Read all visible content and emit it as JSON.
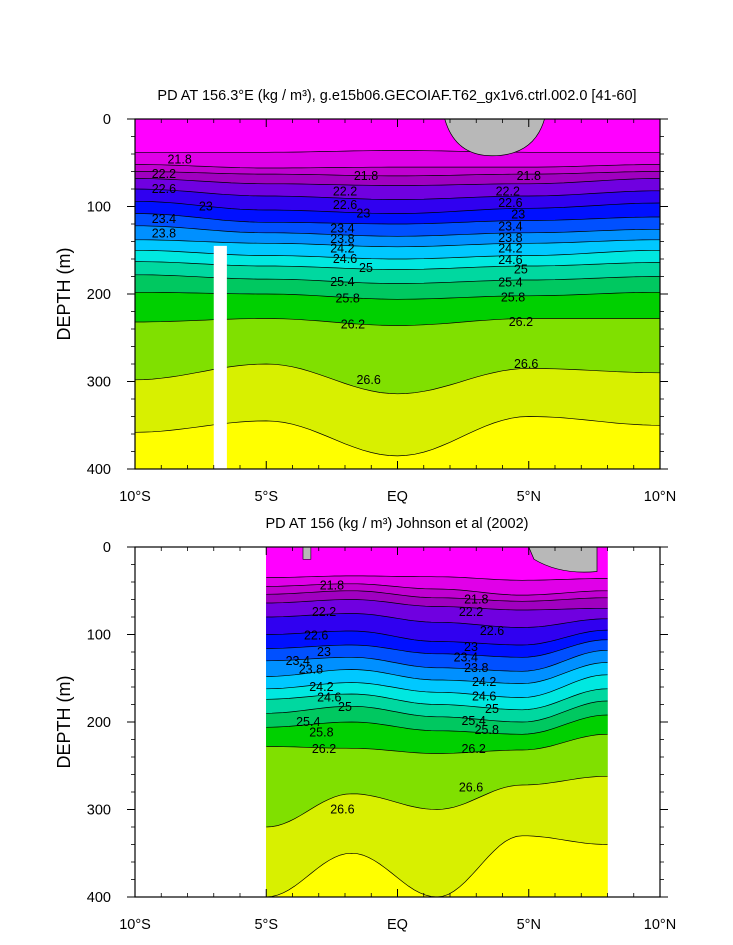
{
  "chart_data": [
    {
      "type": "heatmap",
      "title": "PD AT 156.3°E (kg / m³), g.e15b06.GECOIAF.T62_gx1v6.ctrl.002.0 [41-60]",
      "ylabel": "DEPTH (m)",
      "xlabel": "",
      "x_range": [
        -10,
        10
      ],
      "y_range": [
        0,
        400
      ],
      "y_reversed": true,
      "x_ticks": [
        -10,
        -5,
        0,
        5,
        10
      ],
      "x_tick_labels": [
        "10°S",
        "5°S",
        "EQ",
        "5°N",
        "10°N"
      ],
      "y_ticks": [
        0,
        100,
        200,
        300,
        400
      ],
      "y_tick_labels": [
        "0",
        "100",
        "200",
        "300",
        "400"
      ],
      "data_x_range": [
        -10,
        10
      ],
      "missing_band": [
        -7,
        -6.5,
        145,
        400
      ],
      "contour_depths": [
        {
          "level": 21.6,
          "depths": [
            38,
            38,
            36,
            38,
            38
          ]
        },
        {
          "level": 21.8,
          "depths": [
            52,
            56,
            55,
            55,
            52
          ]
        },
        {
          "level": 22.0,
          "depths": [
            60,
            63,
            65,
            63,
            60
          ]
        },
        {
          "level": 22.2,
          "depths": [
            68,
            74,
            76,
            74,
            68
          ]
        },
        {
          "level": 22.6,
          "depths": [
            80,
            88,
            92,
            88,
            82
          ]
        },
        {
          "level": 23.0,
          "depths": [
            94,
            104,
            108,
            102,
            96
          ]
        },
        {
          "level": 23.4,
          "depths": [
            108,
            118,
            120,
            116,
            112
          ]
        },
        {
          "level": 23.8,
          "depths": [
            122,
            130,
            134,
            130,
            126
          ]
        },
        {
          "level": 24.2,
          "depths": [
            138,
            142,
            146,
            142,
            138
          ]
        },
        {
          "level": 24.6,
          "depths": [
            150,
            156,
            160,
            156,
            150
          ]
        },
        {
          "level": 25.0,
          "depths": [
            163,
            168,
            172,
            168,
            164
          ]
        },
        {
          "level": 25.4,
          "depths": [
            178,
            183,
            188,
            184,
            180
          ]
        },
        {
          "level": 25.8,
          "depths": [
            198,
            200,
            206,
            202,
            198
          ]
        },
        {
          "level": 26.2,
          "depths": [
            232,
            228,
            236,
            228,
            228
          ]
        },
        {
          "level": 26.6,
          "depths": [
            298,
            280,
            314,
            285,
            290
          ]
        },
        {
          "level": 27.0,
          "depths": [
            358,
            345,
            385,
            340,
            350
          ]
        }
      ],
      "labels": [
        {
          "text": "21.8",
          "x": -8.3,
          "y": 46
        },
        {
          "text": "21.8",
          "x": -1.2,
          "y": 65
        },
        {
          "text": "21.8",
          "x": 5.0,
          "y": 65
        },
        {
          "text": "22.2",
          "x": -8.9,
          "y": 63
        },
        {
          "text": "22.6",
          "x": -8.9,
          "y": 80
        },
        {
          "text": "23",
          "x": -7.3,
          "y": 100
        },
        {
          "text": "23.4",
          "x": -8.9,
          "y": 114
        },
        {
          "text": "23.8",
          "x": -8.9,
          "y": 131
        },
        {
          "text": "22.2",
          "x": -2.0,
          "y": 83
        },
        {
          "text": "22.6",
          "x": -2.0,
          "y": 98
        },
        {
          "text": "23",
          "x": -1.3,
          "y": 108
        },
        {
          "text": "23.4",
          "x": -2.1,
          "y": 125
        },
        {
          "text": "23.8",
          "x": -2.1,
          "y": 137
        },
        {
          "text": "24.2",
          "x": -2.1,
          "y": 148
        },
        {
          "text": "24.6",
          "x": -2.0,
          "y": 160
        },
        {
          "text": "25",
          "x": -1.2,
          "y": 170
        },
        {
          "text": "25.4",
          "x": -2.1,
          "y": 186
        },
        {
          "text": "25.8",
          "x": -1.9,
          "y": 205
        },
        {
          "text": "26.2",
          "x": -1.7,
          "y": 235
        },
        {
          "text": "26.6",
          "x": -1.1,
          "y": 298
        },
        {
          "text": "22.2",
          "x": 4.2,
          "y": 83
        },
        {
          "text": "22.6",
          "x": 4.3,
          "y": 96
        },
        {
          "text": "23",
          "x": 4.6,
          "y": 109
        },
        {
          "text": "23.4",
          "x": 4.3,
          "y": 123
        },
        {
          "text": "23.8",
          "x": 4.3,
          "y": 136
        },
        {
          "text": "24.2",
          "x": 4.3,
          "y": 148
        },
        {
          "text": "24.6",
          "x": 4.3,
          "y": 161
        },
        {
          "text": "25",
          "x": 4.7,
          "y": 172
        },
        {
          "text": "25.4",
          "x": 4.3,
          "y": 187
        },
        {
          "text": "25.8",
          "x": 4.4,
          "y": 204
        },
        {
          "text": "26.2",
          "x": 4.7,
          "y": 232
        },
        {
          "text": "26.6",
          "x": 4.9,
          "y": 280
        }
      ]
    },
    {
      "type": "heatmap",
      "title": "PD AT 156 (kg / m³) Johnson et al (2002)",
      "ylabel": "DEPTH (m)",
      "xlabel": "",
      "x_range": [
        -10,
        10
      ],
      "y_range": [
        0,
        400
      ],
      "y_reversed": true,
      "x_ticks": [
        -10,
        -5,
        0,
        5,
        10
      ],
      "x_tick_labels": [
        "10°S",
        "5°S",
        "EQ",
        "5°N",
        "10°N"
      ],
      "y_ticks": [
        0,
        100,
        200,
        300,
        400
      ],
      "y_tick_labels": [
        "0",
        "100",
        "200",
        "300",
        "400"
      ],
      "data_x_range": [
        -5,
        8
      ],
      "contour_depths": [
        {
          "level": 21.6,
          "depths": [
            35,
            33,
            34,
            38,
            36
          ]
        },
        {
          "level": 21.8,
          "depths": [
            45,
            42,
            48,
            55,
            50
          ]
        },
        {
          "level": 22.0,
          "depths": [
            54,
            50,
            58,
            62,
            58
          ]
        },
        {
          "level": 22.2,
          "depths": [
            64,
            60,
            68,
            72,
            70
          ]
        },
        {
          "level": 22.6,
          "depths": [
            80,
            76,
            86,
            92,
            82
          ]
        },
        {
          "level": 23.0,
          "depths": [
            100,
            96,
            108,
            112,
            95
          ]
        },
        {
          "level": 23.4,
          "depths": [
            116,
            112,
            122,
            126,
            106
          ]
        },
        {
          "level": 23.8,
          "depths": [
            130,
            126,
            138,
            142,
            118
          ]
        },
        {
          "level": 24.2,
          "depths": [
            148,
            140,
            152,
            156,
            132
          ]
        },
        {
          "level": 24.6,
          "depths": [
            162,
            155,
            166,
            172,
            146
          ]
        },
        {
          "level": 25.0,
          "depths": [
            174,
            168,
            180,
            186,
            162
          ]
        },
        {
          "level": 25.4,
          "depths": [
            190,
            182,
            194,
            200,
            176
          ]
        },
        {
          "level": 25.8,
          "depths": [
            206,
            200,
            210,
            214,
            192
          ]
        },
        {
          "level": 26.2,
          "depths": [
            228,
            230,
            236,
            232,
            214
          ]
        },
        {
          "level": 26.6,
          "depths": [
            320,
            282,
            300,
            272,
            262
          ]
        },
        {
          "level": 27.0,
          "depths": [
            400,
            350,
            400,
            330,
            340
          ]
        }
      ],
      "labels": [
        {
          "text": "21.8",
          "x": -2.5,
          "y": 44
        },
        {
          "text": "21.8",
          "x": 3.0,
          "y": 60
        },
        {
          "text": "22.2",
          "x": -2.8,
          "y": 74
        },
        {
          "text": "22.2",
          "x": 2.8,
          "y": 74
        },
        {
          "text": "22.6",
          "x": -3.1,
          "y": 101
        },
        {
          "text": "22.6",
          "x": 3.6,
          "y": 96
        },
        {
          "text": "23",
          "x": -2.8,
          "y": 120
        },
        {
          "text": "23",
          "x": 2.8,
          "y": 114
        },
        {
          "text": "23.4",
          "x": -3.8,
          "y": 130
        },
        {
          "text": "23.4",
          "x": 2.6,
          "y": 126
        },
        {
          "text": "23.8",
          "x": -3.3,
          "y": 140
        },
        {
          "text": "23.8",
          "x": 3.0,
          "y": 138
        },
        {
          "text": "24.2",
          "x": -2.9,
          "y": 160
        },
        {
          "text": "24.2",
          "x": 3.3,
          "y": 154
        },
        {
          "text": "24.6",
          "x": -2.6,
          "y": 172
        },
        {
          "text": "24.6",
          "x": 3.3,
          "y": 171
        },
        {
          "text": "25",
          "x": -2.0,
          "y": 183
        },
        {
          "text": "25",
          "x": 3.6,
          "y": 185
        },
        {
          "text": "25.4",
          "x": -3.4,
          "y": 200
        },
        {
          "text": "25.4",
          "x": 2.9,
          "y": 199
        },
        {
          "text": "25.8",
          "x": -2.9,
          "y": 212
        },
        {
          "text": "25.8",
          "x": 3.4,
          "y": 209
        },
        {
          "text": "26.2",
          "x": -2.8,
          "y": 231
        },
        {
          "text": "26.2",
          "x": 2.9,
          "y": 231
        },
        {
          "text": "26.6",
          "x": -2.1,
          "y": 300
        },
        {
          "text": "26.6",
          "x": 2.8,
          "y": 275
        }
      ]
    }
  ],
  "colors": {
    "bands": [
      "#ff00ff",
      "#e000e8",
      "#c000d0",
      "#a000c0",
      "#7000e0",
      "#3000f0",
      "#0010ff",
      "#0050ff",
      "#0090ff",
      "#00c8ff",
      "#00e8e0",
      "#00d8a0",
      "#00c860",
      "#00d000",
      "#80e000",
      "#d8f000",
      "#ffff00",
      "#ffd800",
      "#ffb000",
      "#ff9000",
      "#ff7000",
      "#ff4000",
      "#ff1000",
      "#e80000",
      "#d00000",
      "#b80000"
    ],
    "missing": "#b8b8b8"
  }
}
